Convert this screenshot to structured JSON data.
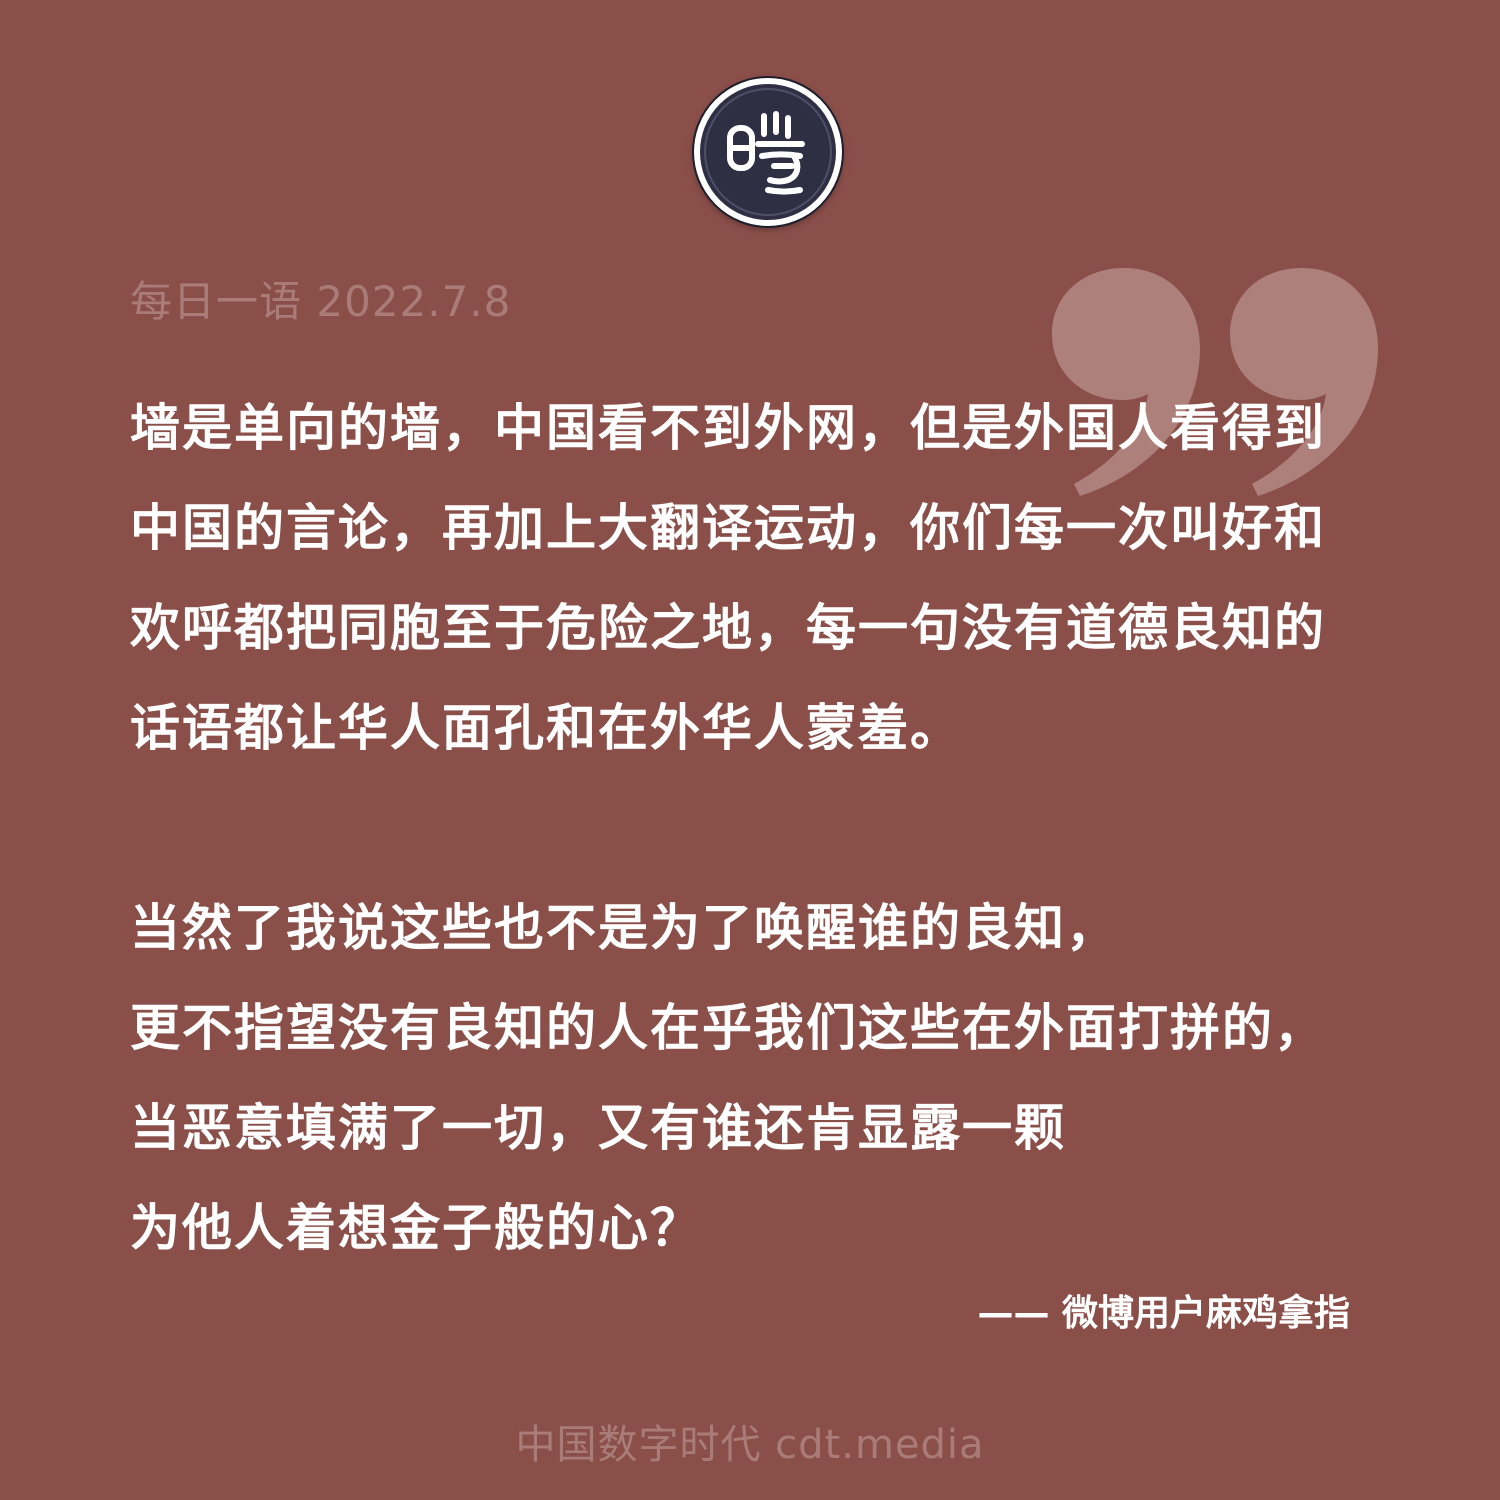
{
  "logo": {
    "glyph": "曙",
    "icon": "cdt-seal-logo"
  },
  "header": {
    "date_line": "每日一语 2022.7.8"
  },
  "quote": {
    "icon": "closing-quote-mark",
    "paragraph1": [
      "墙是单向的墙，中国看不到外网，但是外国人看得到",
      "中国的言论，再加上大翻译运动，你们每一次叫好和",
      "欢呼都把同胞至于危险之地，每一句没有道德良知的",
      "话语都让华人面孔和在外华人蒙羞。"
    ],
    "paragraph2": [
      "当然了我说这些也不是为了唤醒谁的良知，",
      "更不指望没有良知的人在乎我们这些在外面打拼的，",
      "当恶意填满了一切，又有谁还肯显露一颗",
      "为他人着想金子般的心？"
    ]
  },
  "attribution": "—— 微博用户麻鸡拿指",
  "footer": "中国数字时代 cdt.media",
  "colors": {
    "background": "#8b4f4a",
    "muted_text": "#a97c78",
    "quote_mark": "#ad807c",
    "logo_fill": "#2f2f43"
  }
}
